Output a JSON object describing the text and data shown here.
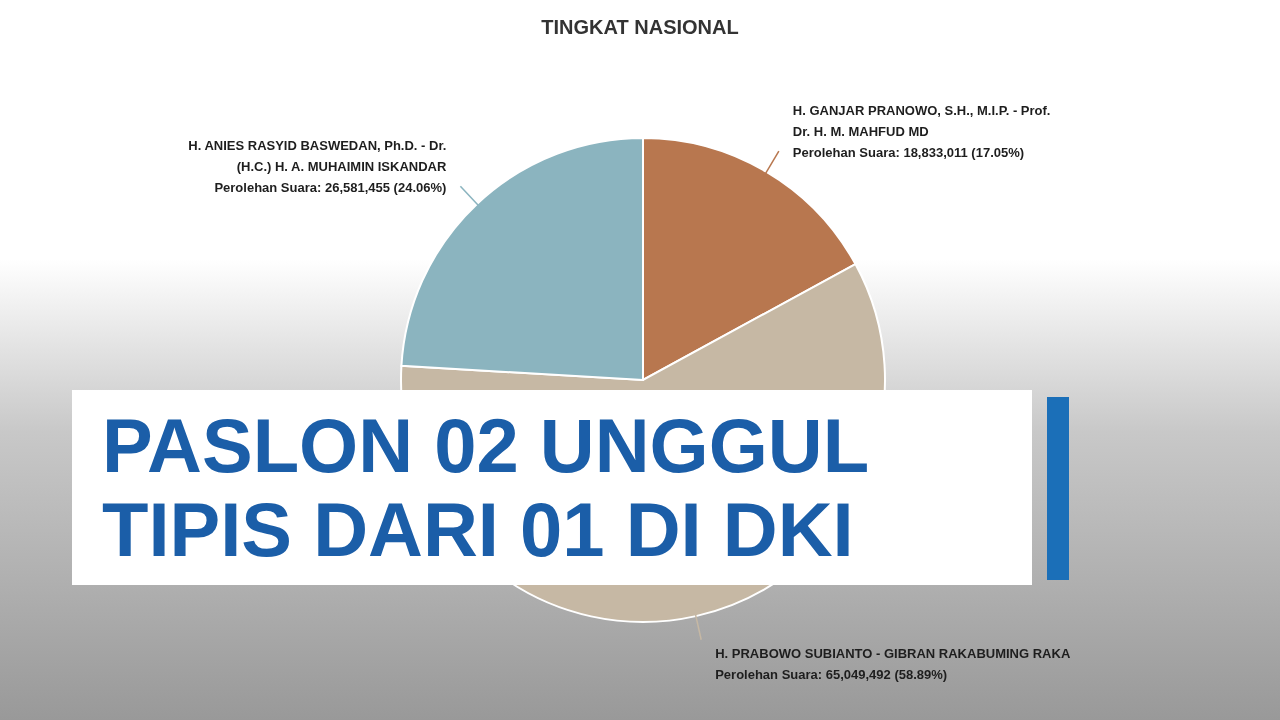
{
  "chart_data": {
    "type": "pie",
    "title": "TINGKAT NASIONAL",
    "categories": [
      "H. GANJAR PRANOWO, S.H., M.I.P. - Prof. Dr. H. M. MAHFUD MD",
      "H. PRABOWO SUBIANTO - GIBRAN RAKABUMING RAKA",
      "H. ANIES RASYID BASWEDAN, Ph.D. - Dr. (H.C.) H. A. MUHAIMIN ISKANDAR"
    ],
    "values": [
      18833011,
      65049492,
      26581455
    ],
    "colors": [
      "#b8774f",
      "#c6b8a4",
      "#8bb4bf"
    ],
    "value_labels": [
      "Perolehan Suara: 18,833,011 (17.05%)",
      "Perolehan Suara: 65,049,492 (58.89%)",
      "Perolehan Suara: 26,581,455 (24.06%)"
    ],
    "annotations": [
      "PASLON 02 UNGGUL TIPIS DARI 01 DI DKI"
    ]
  }
}
